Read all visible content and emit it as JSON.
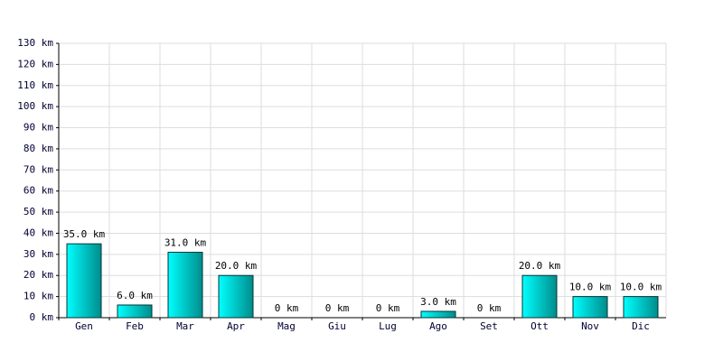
{
  "chart_data": {
    "type": "bar",
    "categories": [
      "Gen",
      "Feb",
      "Mar",
      "Apr",
      "Mag",
      "Giu",
      "Lug",
      "Ago",
      "Set",
      "Ott",
      "Nov",
      "Dic"
    ],
    "values": [
      35,
      6,
      31,
      20,
      0,
      0,
      0,
      3,
      0,
      20,
      10,
      10
    ],
    "value_labels": [
      "35.0 km",
      "6.0 km",
      "31.0 km",
      "20.0 km",
      "0 km",
      "0 km",
      "0 km",
      "3.0 km",
      "0 km",
      "20.0 km",
      "10.0 km",
      "10.0 km"
    ],
    "color": "#00c8c8",
    "ylim": [
      0,
      130
    ],
    "yticks": [
      {
        "value": 0,
        "label": "0 km"
      },
      {
        "value": 10,
        "label": "10 km"
      },
      {
        "value": 20,
        "label": "20 km"
      },
      {
        "value": 30,
        "label": "30 km"
      },
      {
        "value": 40,
        "label": "40 km"
      },
      {
        "value": 50,
        "label": "50 km"
      },
      {
        "value": 60,
        "label": "60 km"
      },
      {
        "value": 70,
        "label": "70 km"
      },
      {
        "value": 80,
        "label": "80 km"
      },
      {
        "value": 90,
        "label": "90 km"
      },
      {
        "value": 100,
        "label": "100 km"
      },
      {
        "value": 110,
        "label": "110 km"
      },
      {
        "value": 120,
        "label": "120 km"
      },
      {
        "value": 130,
        "label": "130 km"
      }
    ],
    "grid": true
  }
}
